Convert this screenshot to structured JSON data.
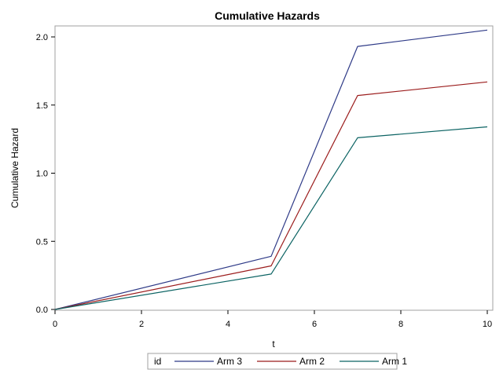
{
  "chart_data": {
    "type": "line",
    "title": "Cumulative Hazards",
    "xlabel": "t",
    "ylabel": "Cumulative Hazard",
    "xlim": [
      0,
      10
    ],
    "ylim": [
      0,
      2.1
    ],
    "xticks": [
      0,
      2,
      4,
      6,
      8,
      10
    ],
    "xtick_labels": [
      "0",
      "2",
      "4",
      "6",
      "8",
      "10"
    ],
    "yticks": [
      0,
      0.5,
      1,
      1.5,
      2
    ],
    "ytick_labels": [
      "0.0",
      "0.5",
      "1.0",
      "1.5",
      "2.0"
    ],
    "grid": false,
    "legend": {
      "title": "id",
      "placement": "bottom"
    },
    "series": [
      {
        "name": "Arm 3",
        "color": "#2e3a87",
        "x": [
          0,
          5,
          7,
          10
        ],
        "y": [
          0,
          0.39,
          1.93,
          2.05
        ]
      },
      {
        "name": "Arm 2",
        "color": "#9b1c1c",
        "x": [
          0,
          5,
          7,
          10
        ],
        "y": [
          0,
          0.32,
          1.57,
          1.67
        ]
      },
      {
        "name": "Arm 1",
        "color": "#0b6363",
        "x": [
          0,
          5,
          7,
          10
        ],
        "y": [
          0,
          0.26,
          1.26,
          1.34
        ]
      }
    ]
  }
}
